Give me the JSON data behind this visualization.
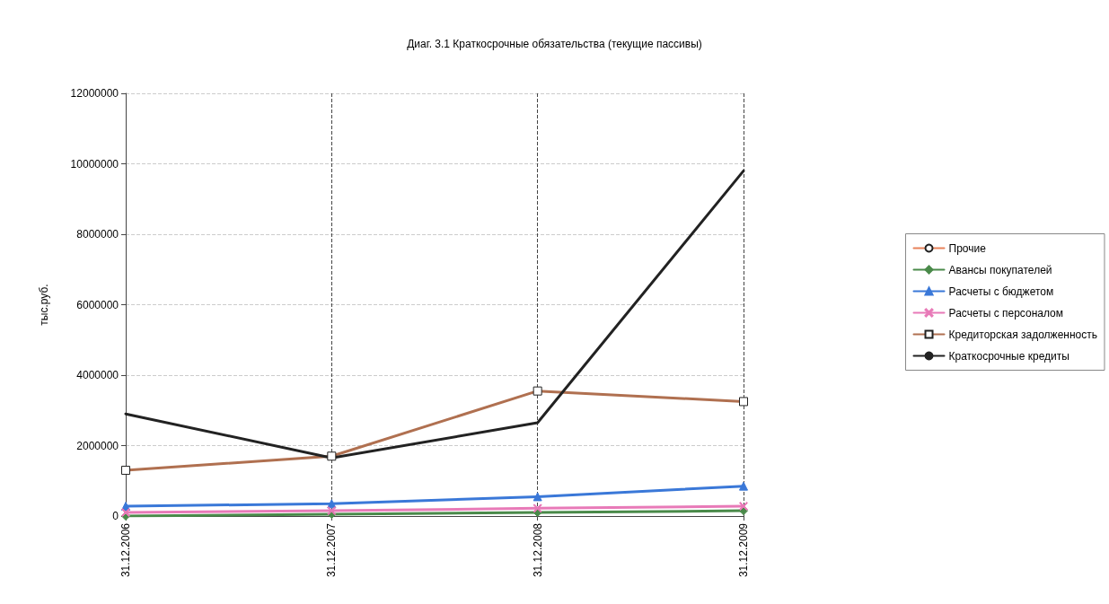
{
  "chart_data": {
    "type": "line",
    "title": "Диаг. 3.1 Краткосрочные обязательства (текущие пассивы)",
    "ylabel": "тыс.руб.",
    "categories": [
      "31.12.2006",
      "31.12.2007",
      "31.12.2008",
      "31.12.2009"
    ],
    "series": [
      {
        "name": "Прочие",
        "color": "#e8825a",
        "marker": "circle",
        "values": [
          null,
          null,
          null,
          null
        ]
      },
      {
        "name": "Авансы покупателей",
        "color": "#4a8a4a",
        "marker": "diamond",
        "values": [
          0,
          50000,
          100000,
          150000
        ]
      },
      {
        "name": "Расчеты с бюджетом",
        "color": "#3a78d8",
        "marker": "triangle",
        "values": [
          280000,
          350000,
          550000,
          850000
        ]
      },
      {
        "name": "Расчеты с персоналом",
        "color": "#e87ab8",
        "marker": "cross",
        "values": [
          100000,
          150000,
          220000,
          280000
        ]
      },
      {
        "name": "Кредиторская задолженность",
        "color": "#b07050",
        "marker": "square",
        "values": [
          1300000,
          1700000,
          3550000,
          3250000
        ]
      },
      {
        "name": "Краткосрочные кредиты",
        "color": "#222222",
        "marker": "none",
        "values": [
          2900000,
          1650000,
          2650000,
          9800000
        ]
      }
    ],
    "ylim": [
      0,
      12000000
    ],
    "yticks": [
      0,
      2000000,
      4000000,
      6000000,
      8000000,
      10000000,
      12000000
    ],
    "grid": true,
    "legend": "right"
  }
}
